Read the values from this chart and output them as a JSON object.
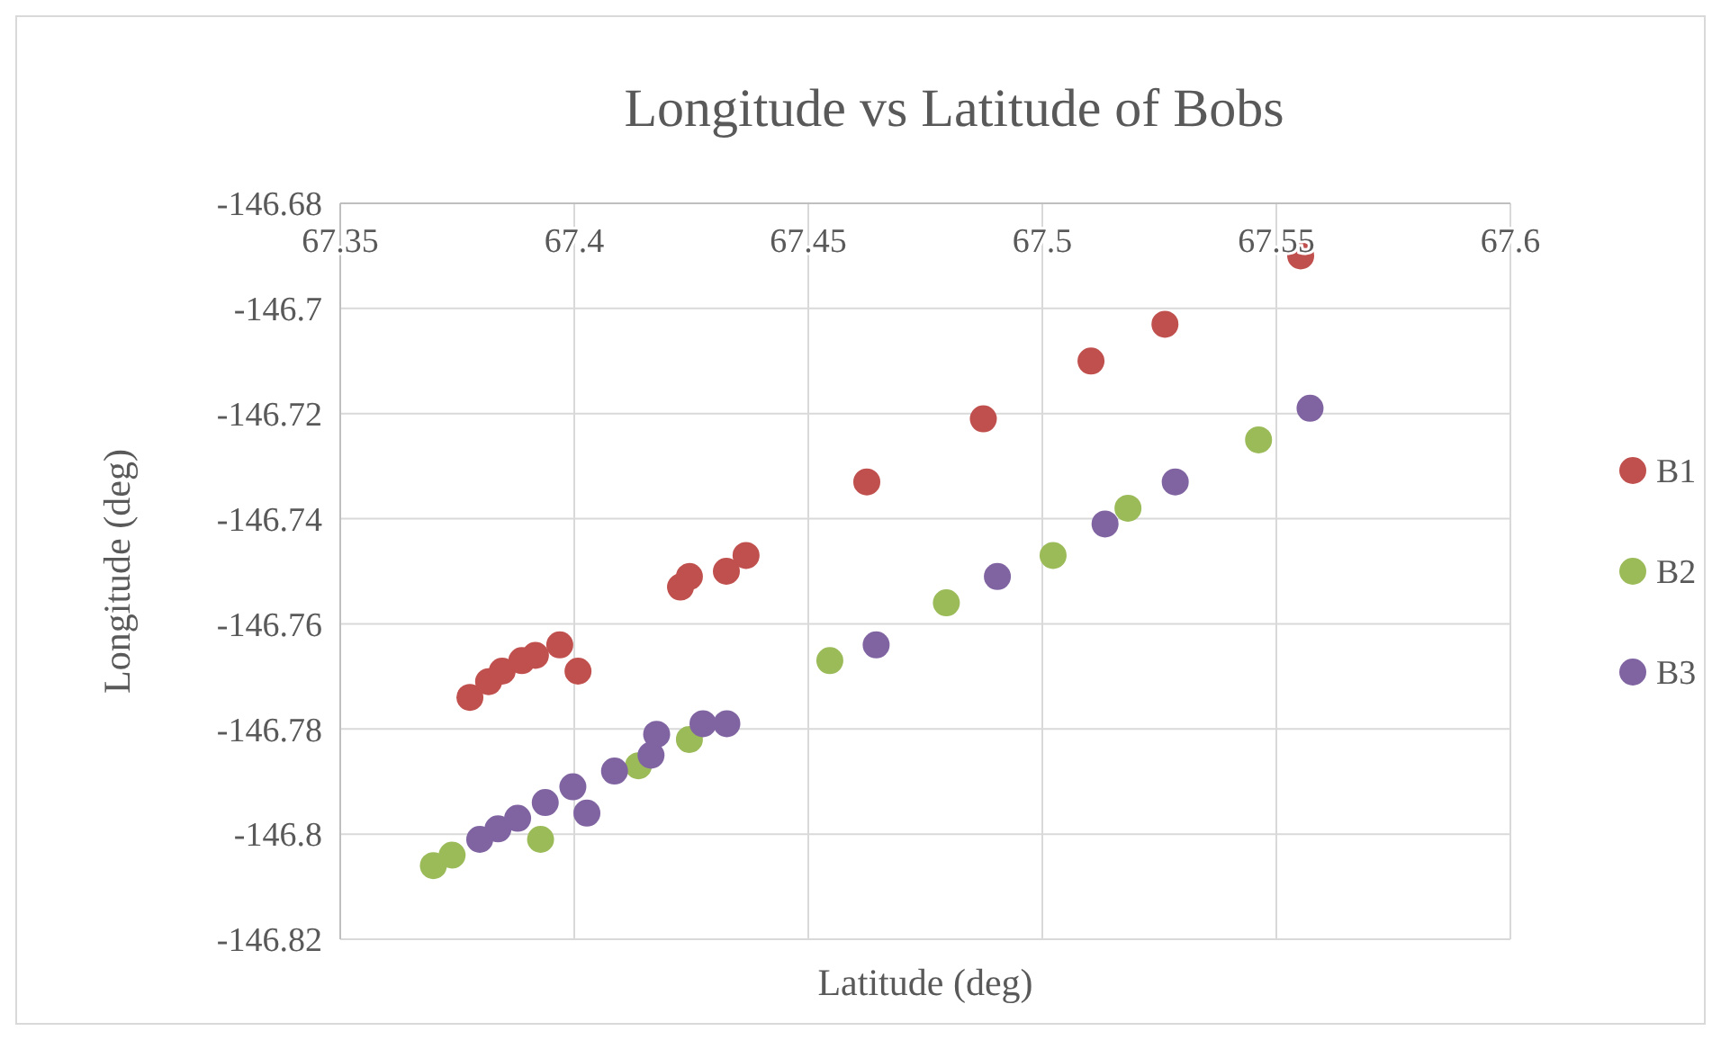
{
  "chart_data": {
    "type": "scatter",
    "title": "Longitude vs Latitude of Bobs",
    "xlabel": "Latitude (deg)",
    "ylabel": "Longitude (deg)",
    "xlim": [
      67.35,
      67.6
    ],
    "xticks": [
      67.35,
      67.4,
      67.45,
      67.5,
      67.55,
      67.6
    ],
    "ylim": [
      -146.82,
      -146.68
    ],
    "yticks": [
      -146.82,
      -146.8,
      -146.78,
      -146.76,
      -146.74,
      -146.72,
      -146.7,
      -146.68
    ],
    "grid": true,
    "legend": "right",
    "marker": "circle",
    "series": [
      {
        "name": "B1",
        "color": "#c0504d",
        "x": [
          67.3777,
          67.3817,
          67.3846,
          67.3888,
          67.3917,
          67.3969,
          67.4008,
          67.4227,
          67.4246,
          67.4325,
          67.4367,
          67.4625,
          67.4874,
          67.5104,
          67.5262,
          67.5552
        ],
        "values": [
          -146.774,
          -146.771,
          -146.769,
          -146.767,
          -146.766,
          -146.764,
          -146.769,
          -146.753,
          -146.751,
          -146.75,
          -146.747,
          -146.733,
          -146.721,
          -146.71,
          -146.703,
          -146.69
        ]
      },
      {
        "name": "B2",
        "color": "#9bbb59",
        "x": [
          67.3699,
          67.3739,
          67.3928,
          67.4137,
          67.4246,
          67.4546,
          67.4795,
          67.5023,
          67.5183,
          67.5462
        ],
        "values": [
          -146.806,
          -146.804,
          -146.801,
          -146.787,
          -146.782,
          -146.767,
          -146.756,
          -146.747,
          -146.738,
          -146.725
        ]
      },
      {
        "name": "B3",
        "color": "#8064a2",
        "x": [
          67.3798,
          67.3837,
          67.3879,
          67.3938,
          67.3997,
          67.4027,
          67.4086,
          67.4164,
          67.4176,
          67.4275,
          67.4326,
          67.4645,
          67.4904,
          67.5134,
          67.5284,
          67.5572
        ],
        "values": [
          -146.801,
          -146.799,
          -146.797,
          -146.794,
          -146.791,
          -146.796,
          -146.788,
          -146.785,
          -146.781,
          -146.779,
          -146.779,
          -146.764,
          -146.751,
          -146.741,
          -146.733,
          -146.719
        ]
      }
    ]
  }
}
